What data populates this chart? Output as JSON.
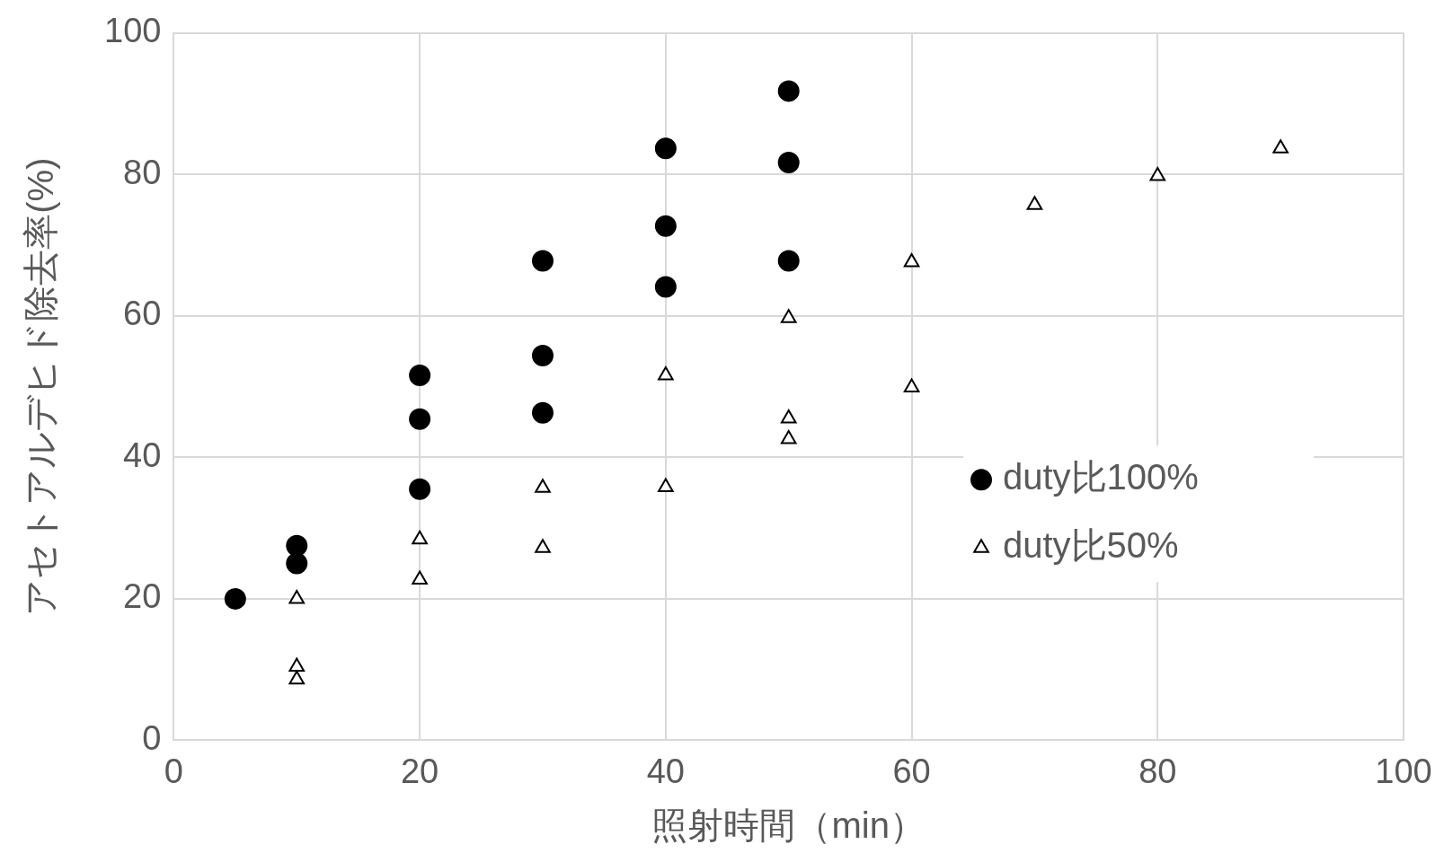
{
  "chart_data": {
    "type": "scatter",
    "xlabel": "照射時間（min）",
    "ylabel": "アセトアルデヒド除去率(%)",
    "xlim": [
      0,
      100
    ],
    "xticks": [
      0,
      20,
      40,
      60,
      80,
      100
    ],
    "ylim": [
      0,
      100
    ],
    "yticks": [
      0,
      20,
      40,
      60,
      80,
      100
    ],
    "grid": true,
    "legend": "right",
    "series": [
      {
        "name": "duty比100%",
        "color": "#000000",
        "marker": "circle",
        "x": [
          5,
          10,
          10,
          20,
          20,
          20,
          30,
          30,
          30,
          40,
          40,
          40,
          50,
          50,
          50
        ],
        "values": [
          20,
          27.5,
          25,
          51.6,
          45.4,
          35.5,
          67.8,
          54.4,
          46.3,
          83.7,
          72.7,
          64.1,
          91.8,
          81.7,
          67.8
        ]
      },
      {
        "name": "duty比50%",
        "color": "#000000",
        "marker": "triangle",
        "x": [
          10,
          10,
          10,
          20,
          20,
          30,
          30,
          40,
          40,
          50,
          50,
          50,
          60,
          60,
          70,
          80,
          90
        ],
        "values": [
          20,
          10.4,
          8.6,
          28.4,
          22.7,
          35.7,
          27.2,
          51.6,
          35.8,
          59.7,
          45.5,
          42.6,
          67.6,
          49.9,
          75.7,
          79.8,
          83.7
        ]
      }
    ]
  }
}
